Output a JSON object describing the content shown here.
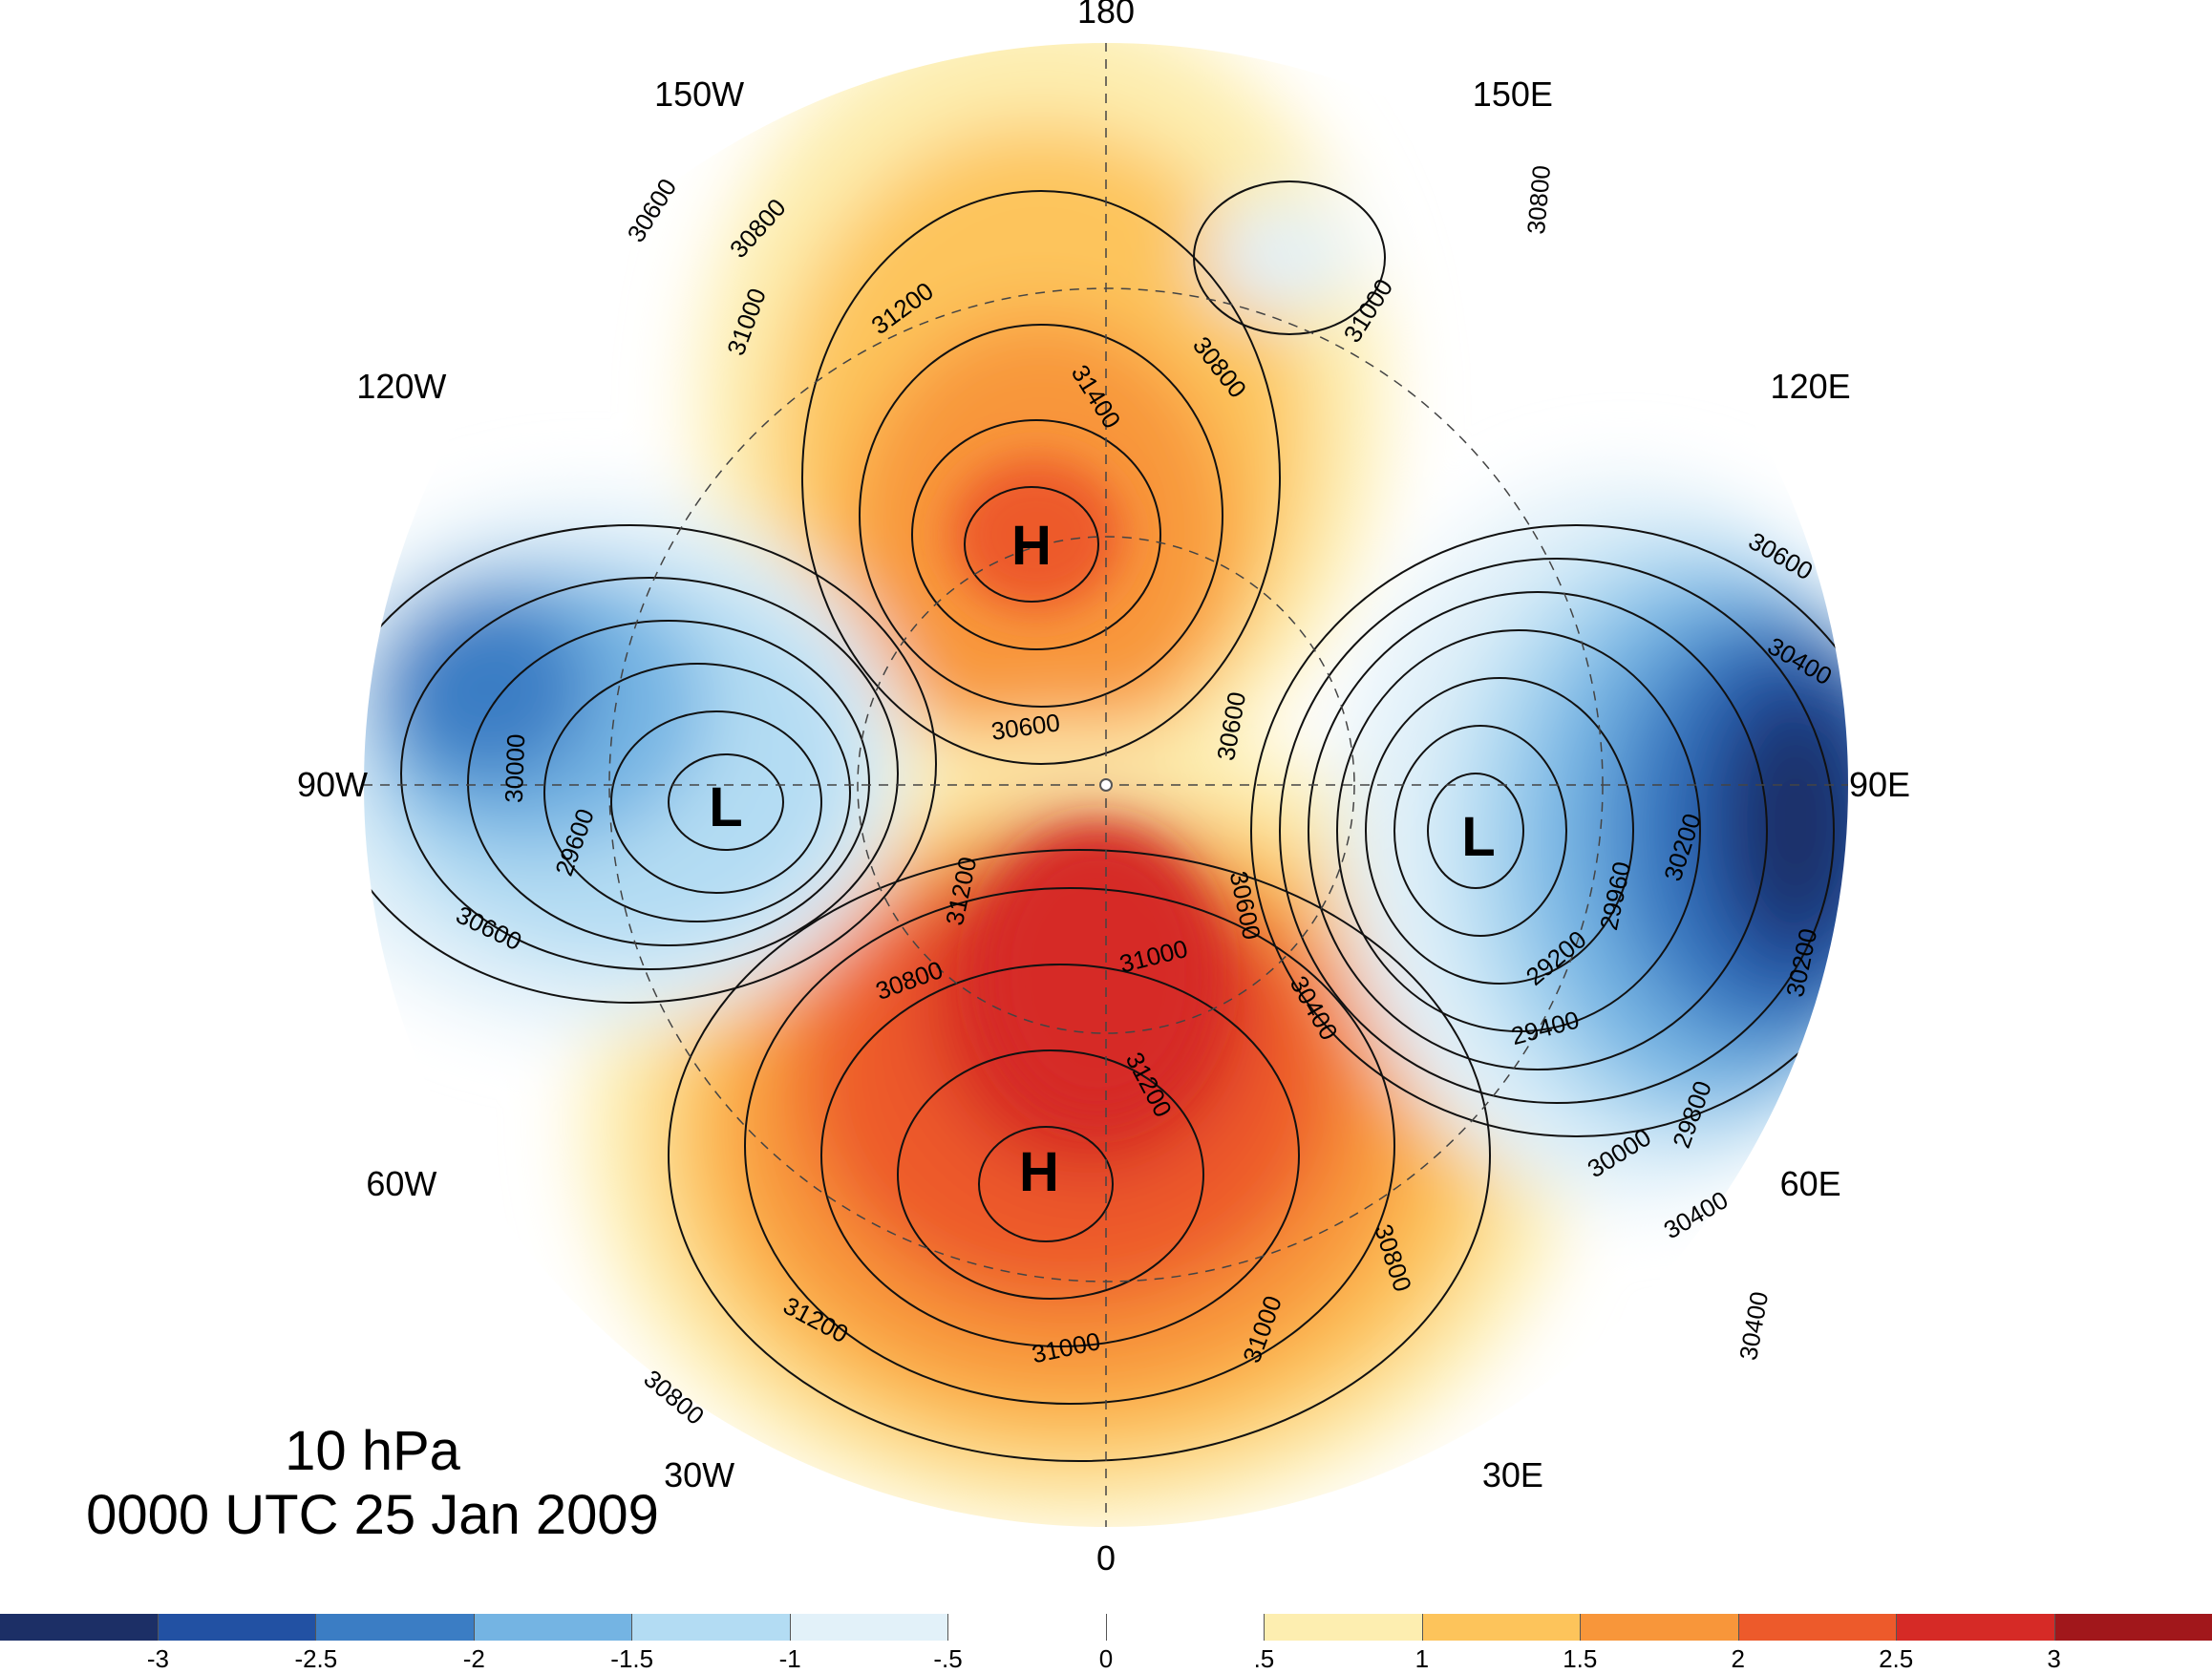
{
  "title": {
    "level": "10 hPa",
    "datetime": "0000 UTC 25 Jan 2009"
  },
  "longitude_labels": [
    {
      "text": "180",
      "angle": 0
    },
    {
      "text": "150E",
      "angle": 30
    },
    {
      "text": "120E",
      "angle": 60
    },
    {
      "text": "90E",
      "angle": 90
    },
    {
      "text": "60E",
      "angle": 120
    },
    {
      "text": "30E",
      "angle": 150
    },
    {
      "text": "0",
      "angle": 180
    },
    {
      "text": "30W",
      "angle": 210
    },
    {
      "text": "60W",
      "angle": 240
    },
    {
      "text": "90W",
      "angle": 270
    },
    {
      "text": "120W",
      "angle": 300
    },
    {
      "text": "150W",
      "angle": 330
    }
  ],
  "pressure_centers": [
    {
      "text": "H",
      "name": "high-north"
    },
    {
      "text": "H",
      "name": "high-south"
    },
    {
      "text": "L",
      "name": "low-west"
    },
    {
      "text": "L",
      "name": "low-east"
    }
  ],
  "contour_labels": [
    "30600",
    "30800",
    "31000",
    "31200",
    "31400",
    "30800",
    "31000",
    "30800",
    "30600",
    "30400",
    "30200",
    "29960",
    "29200",
    "29400",
    "29800",
    "30000",
    "30400",
    "30200",
    "30400",
    "30600",
    "31200",
    "30600",
    "31000",
    "31200",
    "31000",
    "31200",
    "30800",
    "31000",
    "30800",
    "30800",
    "30600",
    "30400",
    "30000",
    "29600",
    "30600"
  ],
  "colorbar": {
    "colors": [
      "#1c2f66",
      "#2251a3",
      "#3b7dc4",
      "#74b4e3",
      "#b3dcf3",
      "#e2f1f9",
      "#ffffff",
      "#ffffff",
      "#fdeeb0",
      "#fdc45b",
      "#f8963a",
      "#ed5a2b",
      "#d62a26",
      "#a1171b"
    ],
    "tick_labels": [
      "-3",
      "-2.5",
      "-2",
      "-1.5",
      "-1",
      "-.5",
      "0",
      ".5",
      "1",
      "1.5",
      "2",
      "2.5",
      "3"
    ]
  }
}
